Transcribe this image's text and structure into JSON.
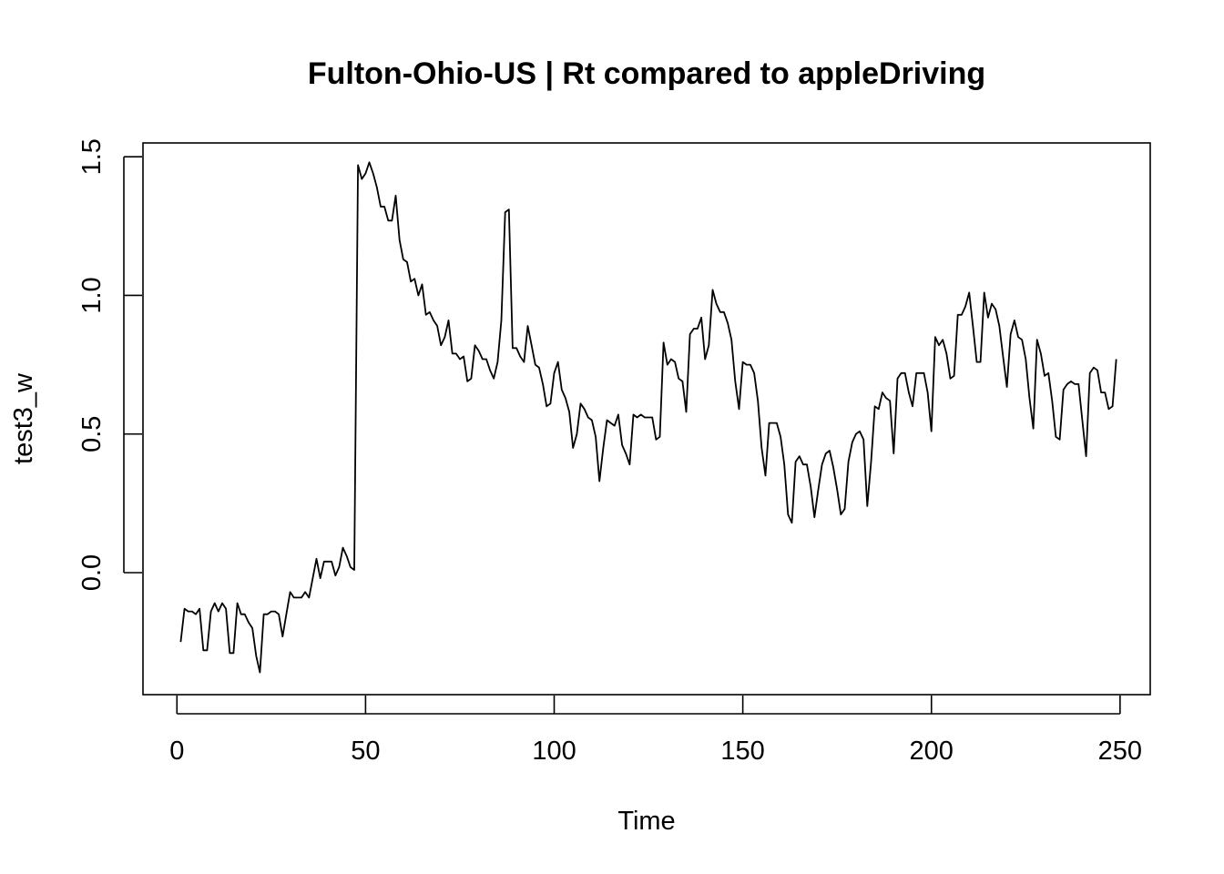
{
  "chart_data": {
    "type": "line",
    "title": "Fulton-Ohio-US | Rt compared to appleDriving",
    "xlabel": "Time",
    "ylabel": "test3_w",
    "xlim": [
      -9,
      258
    ],
    "ylim": [
      -0.44,
      1.55
    ],
    "xticks": [
      0,
      50,
      100,
      150,
      200,
      250
    ],
    "yticks": [
      0.0,
      0.5,
      1.0,
      1.5
    ],
    "xtick_labels": [
      "0",
      "50",
      "100",
      "150",
      "200",
      "250"
    ],
    "ytick_labels": [
      "0.0",
      "0.5",
      "1.0",
      "1.5"
    ],
    "grid": false,
    "legend": "none",
    "series": [
      {
        "color": "#000000",
        "x_start": 1,
        "values": [
          -0.25,
          -0.13,
          -0.14,
          -0.14,
          -0.15,
          -0.13,
          -0.28,
          -0.28,
          -0.14,
          -0.11,
          -0.14,
          -0.11,
          -0.13,
          -0.29,
          -0.29,
          -0.11,
          -0.15,
          -0.15,
          -0.18,
          -0.2,
          -0.3,
          -0.36,
          -0.15,
          -0.15,
          -0.14,
          -0.14,
          -0.15,
          -0.23,
          -0.15,
          -0.07,
          -0.09,
          -0.09,
          -0.09,
          -0.07,
          -0.09,
          -0.02,
          0.05,
          -0.02,
          0.04,
          0.04,
          0.04,
          -0.01,
          0.02,
          0.09,
          0.06,
          0.02,
          0.01,
          1.47,
          1.42,
          1.44,
          1.48,
          1.44,
          1.39,
          1.32,
          1.32,
          1.27,
          1.27,
          1.36,
          1.2,
          1.13,
          1.12,
          1.05,
          1.06,
          1.0,
          1.04,
          0.93,
          0.94,
          0.91,
          0.89,
          0.82,
          0.85,
          0.91,
          0.79,
          0.79,
          0.77,
          0.78,
          0.69,
          0.7,
          0.82,
          0.8,
          0.77,
          0.77,
          0.73,
          0.7,
          0.76,
          0.91,
          1.3,
          1.31,
          0.81,
          0.81,
          0.78,
          0.76,
          0.89,
          0.82,
          0.75,
          0.74,
          0.68,
          0.6,
          0.61,
          0.72,
          0.76,
          0.66,
          0.63,
          0.58,
          0.45,
          0.5,
          0.61,
          0.59,
          0.56,
          0.55,
          0.49,
          0.33,
          0.45,
          0.55,
          0.54,
          0.53,
          0.57,
          0.46,
          0.43,
          0.39,
          0.57,
          0.56,
          0.57,
          0.56,
          0.56,
          0.56,
          0.48,
          0.49,
          0.83,
          0.75,
          0.77,
          0.76,
          0.7,
          0.69,
          0.58,
          0.86,
          0.88,
          0.88,
          0.92,
          0.77,
          0.82,
          1.02,
          0.97,
          0.94,
          0.94,
          0.9,
          0.84,
          0.69,
          0.59,
          0.76,
          0.75,
          0.75,
          0.72,
          0.62,
          0.45,
          0.35,
          0.54,
          0.54,
          0.54,
          0.49,
          0.39,
          0.21,
          0.18,
          0.4,
          0.42,
          0.39,
          0.39,
          0.31,
          0.2,
          0.3,
          0.39,
          0.43,
          0.44,
          0.38,
          0.3,
          0.21,
          0.23,
          0.4,
          0.47,
          0.5,
          0.51,
          0.48,
          0.24,
          0.4,
          0.6,
          0.59,
          0.65,
          0.63,
          0.62,
          0.43,
          0.7,
          0.72,
          0.72,
          0.65,
          0.6,
          0.72,
          0.72,
          0.72,
          0.65,
          0.51,
          0.85,
          0.82,
          0.84,
          0.79,
          0.7,
          0.71,
          0.93,
          0.93,
          0.96,
          1.01,
          0.89,
          0.76,
          0.76,
          1.01,
          0.92,
          0.97,
          0.95,
          0.89,
          0.78,
          0.67,
          0.86,
          0.91,
          0.85,
          0.84,
          0.77,
          0.63,
          0.52,
          0.84,
          0.79,
          0.71,
          0.72,
          0.62,
          0.49,
          0.48,
          0.66,
          0.68,
          0.69,
          0.68,
          0.68,
          0.55,
          0.42,
          0.72,
          0.74,
          0.73,
          0.65,
          0.65,
          0.59,
          0.6,
          0.77
        ]
      }
    ]
  }
}
